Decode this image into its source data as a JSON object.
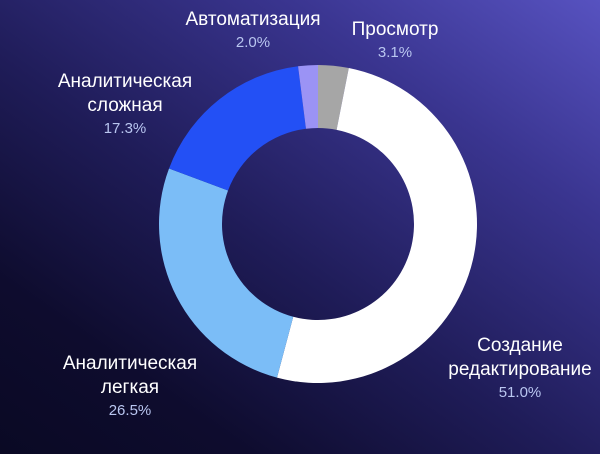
{
  "chart_data": {
    "type": "pie",
    "variant": "donut",
    "title": "",
    "start_angle_deg": 0,
    "direction": "clockwise",
    "center": [
      318,
      224
    ],
    "outer_radius": 159,
    "inner_radius": 96,
    "slices": [
      {
        "label": "Просмотр",
        "value": 3.1,
        "pct_label": "3.1%",
        "color": "#a6a6a6"
      },
      {
        "label": "Создание редактирование",
        "value": 51.0,
        "pct_label": "51.0%",
        "color": "#ffffff"
      },
      {
        "label": "Аналитическая легкая",
        "value": 26.5,
        "pct_label": "26.5%",
        "color": "#7bbdf7"
      },
      {
        "label": "Аналитическая сложная",
        "value": 17.3,
        "pct_label": "17.3%",
        "color": "#2350f5"
      },
      {
        "label": "Автоматизация",
        "value": 2.0,
        "pct_label": "2.0%",
        "color": "#9b93f5"
      }
    ]
  },
  "labels": {
    "prosmotr": {
      "line1": "Просмотр",
      "pct": "3.1%"
    },
    "sozdanie": {
      "line1": "Создание",
      "line2": "редактирование",
      "pct": "51.0%"
    },
    "legkaya": {
      "line1": "Аналитическая",
      "line2": "легкая",
      "pct": "26.5%"
    },
    "slozhnaya": {
      "line1": "Аналитическая",
      "line2": "сложная",
      "pct": "17.3%"
    },
    "avtomat": {
      "line1": "Автоматизация",
      "pct": "2.0%"
    }
  }
}
